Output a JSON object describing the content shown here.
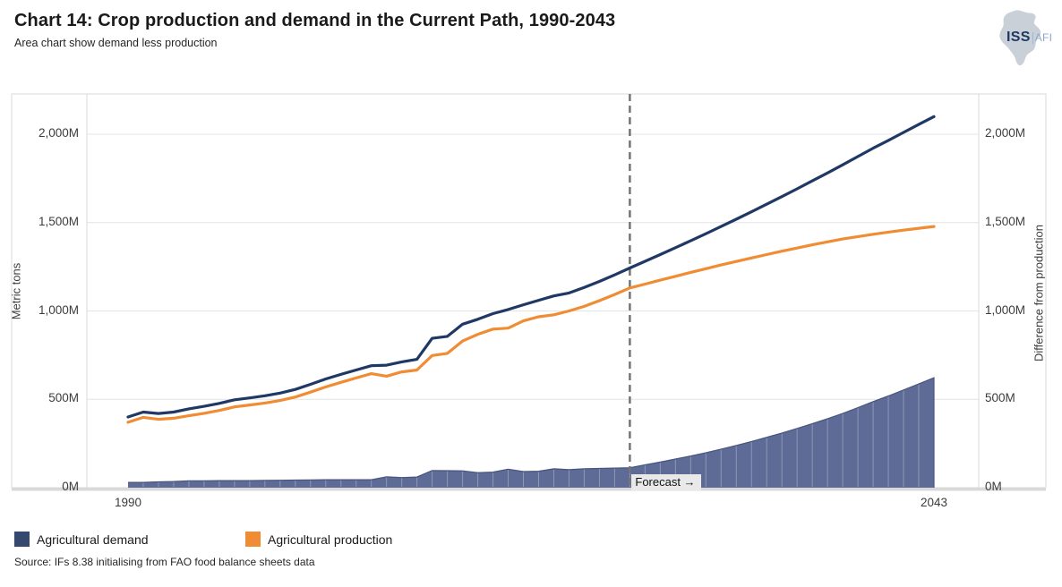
{
  "header": {
    "title": "Chart 14: Crop production and demand in the Current Path, 1990-2043",
    "subtitle": "Area chart show demand less production"
  },
  "logo": {
    "iss": "ISS",
    "afi": "AFI"
  },
  "chart_data": {
    "type": "combo",
    "title": "Chart 14: Crop production and demand in the Current Path, 1990-2043",
    "x": [
      1990,
      1991,
      1992,
      1993,
      1994,
      1995,
      1996,
      1997,
      1998,
      1999,
      2000,
      2001,
      2002,
      2003,
      2004,
      2005,
      2006,
      2007,
      2008,
      2009,
      2010,
      2011,
      2012,
      2013,
      2014,
      2015,
      2016,
      2017,
      2018,
      2019,
      2020,
      2021,
      2022,
      2023,
      2024,
      2025,
      2026,
      2027,
      2028,
      2029,
      2030,
      2031,
      2032,
      2033,
      2034,
      2035,
      2036,
      2037,
      2038,
      2039,
      2040,
      2041,
      2042,
      2043
    ],
    "series": [
      {
        "name": "Agricultural demand",
        "type": "line",
        "color": "#1f3864",
        "values": [
          400,
          428,
          420,
          428,
          446,
          460,
          477,
          497,
          508,
          520,
          535,
          556,
          585,
          615,
          641,
          666,
          690,
          693,
          712,
          726,
          845,
          856,
          925,
          953,
          985,
          1008,
          1035,
          1060,
          1085,
          1102,
          1133,
          1167,
          1204,
          1243,
          1281,
          1319,
          1358,
          1397,
          1437,
          1478,
          1519,
          1561,
          1604,
          1647,
          1691,
          1736,
          1781,
          1827,
          1874,
          1921,
          1965,
          2010,
          2055,
          2100
        ]
      },
      {
        "name": "Agricultural production",
        "type": "line",
        "color": "#f08c33",
        "values": [
          370,
          398,
          387,
          393,
          407,
          421,
          437,
          457,
          468,
          479,
          493,
          513,
          541,
          570,
          596,
          621,
          645,
          631,
          655,
          666,
          748,
          760,
          830,
          868,
          897,
          903,
          944,
          967,
          978,
          1000,
          1026,
          1058,
          1093,
          1130,
          1152,
          1174,
          1196,
          1218,
          1239,
          1260,
          1280,
          1300,
          1319,
          1338,
          1356,
          1374,
          1391,
          1407,
          1421,
          1434,
          1446,
          1457,
          1468,
          1478
        ]
      },
      {
        "name": "Demand less production",
        "type": "area",
        "color": "#5d6b96",
        "values": [
          30,
          30,
          33,
          35,
          39,
          39,
          40,
          40,
          40,
          41,
          42,
          43,
          44,
          45,
          45,
          45,
          45,
          62,
          57,
          60,
          97,
          96,
          95,
          85,
          88,
          105,
          91,
          93,
          107,
          102,
          107,
          109,
          111,
          113,
          129,
          145,
          162,
          179,
          198,
          218,
          239,
          261,
          285,
          309,
          335,
          362,
          390,
          420,
          453,
          487,
          519,
          553,
          587,
          622
        ]
      }
    ],
    "ylabel_left": "Metric tons",
    "ylabel_right": "Difference from production",
    "y_ticks": [
      0,
      500,
      1000,
      1500,
      2000
    ],
    "y_tick_labels": [
      "0M",
      "500M",
      "1,000M",
      "1,500M",
      "2,000M"
    ],
    "ylim": [
      0,
      2228
    ],
    "x_tick_labels": [
      "1990",
      "2043"
    ],
    "x_tick_years": [
      1990,
      2043
    ],
    "forecast_year": 2023,
    "forecast_label": "Forecast →",
    "grid": "horizontal",
    "legend_position": "bottom-left"
  },
  "legend": {
    "items": [
      {
        "label": "Agricultural demand",
        "color": "#35496f"
      },
      {
        "label": "Agricultural production",
        "color": "#f08c33"
      }
    ]
  },
  "source": "Source: IFs 8.38 initialising from FAO food balance sheets data",
  "colors": {
    "demand_line": "#1f3864",
    "production_line": "#f08c33",
    "area_fill": "#5d6b96",
    "gridline": "#e4e4e4",
    "frame": "#d9d9d9",
    "forecast_dash": "#757575"
  }
}
